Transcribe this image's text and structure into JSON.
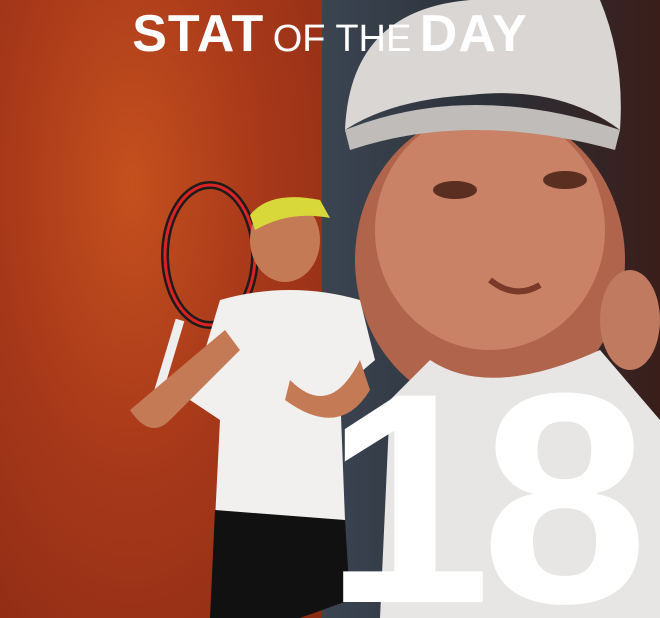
{
  "title": {
    "part1": "STAT",
    "part2": "OF THE",
    "part3": "DAY"
  },
  "stat_value": "18",
  "colors": {
    "left_background": "#a8391a",
    "right_background": "#2b3038",
    "text": "#ffffff"
  },
  "images": {
    "left": "tennis player hitting forehand",
    "right": "player close-up portrait with cap"
  }
}
